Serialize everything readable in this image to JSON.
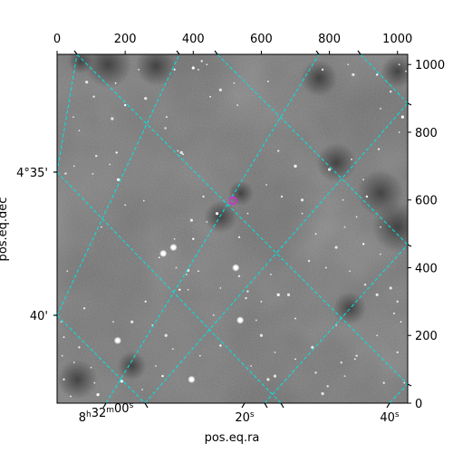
{
  "chart_data": {
    "type": "scatter",
    "image_kind": "grayscale astronomical image with WCS coordinate grid overlay",
    "xlabel": "pos.eq.ra",
    "ylabel": "pos.eq.dec",
    "pixel_axes": {
      "x_ticks": [
        "0",
        "200",
        "400",
        "600",
        "800",
        "1000"
      ],
      "y_ticks": [
        "0",
        "200",
        "400",
        "600",
        "800",
        "1000"
      ],
      "xlim": [
        0,
        1030
      ],
      "ylim": [
        0,
        1030
      ]
    },
    "world_axes": {
      "ra_ticks": [
        "8h32m00s",
        "20s",
        "40s"
      ],
      "dec_ticks": [
        "4°35'",
        "40'"
      ]
    },
    "grid": true,
    "grid_color": "#00e5e5",
    "marker": {
      "shape": "circle",
      "color": "#cc33cc",
      "x": 517,
      "y": 598
    },
    "stars": [
      [
        400,
        990
      ],
      [
        415,
        985
      ],
      [
        440,
        1000
      ],
      [
        425,
        1010
      ],
      [
        172,
        945
      ],
      [
        87,
        948
      ],
      [
        108,
        905
      ],
      [
        48,
        845
      ],
      [
        322,
        845
      ],
      [
        318,
        812
      ],
      [
        162,
        840
      ],
      [
        65,
        805
      ],
      [
        175,
        740
      ],
      [
        155,
        705
      ],
      [
        355,
        745
      ],
      [
        365,
        740
      ],
      [
        370,
        735
      ],
      [
        50,
        700
      ],
      [
        25,
        678
      ],
      [
        105,
        677
      ],
      [
        180,
        660
      ],
      [
        115,
        730
      ],
      [
        130,
        520
      ],
      [
        345,
        485
      ],
      [
        400,
        485
      ],
      [
        395,
        540
      ],
      [
        440,
        535
      ],
      [
        535,
        490
      ],
      [
        300,
        430
      ],
      [
        350,
        400
      ],
      [
        385,
        392
      ],
      [
        380,
        380
      ],
      [
        415,
        390
      ],
      [
        535,
        375
      ],
      [
        628,
        380
      ],
      [
        680,
        320
      ],
      [
        360,
        335
      ],
      [
        385,
        335
      ],
      [
        480,
        340
      ],
      [
        560,
        330
      ],
      [
        650,
        320
      ],
      [
        30,
        390
      ],
      [
        80,
        280
      ],
      [
        165,
        240
      ],
      [
        280,
        230
      ],
      [
        320,
        200
      ],
      [
        585,
        245
      ],
      [
        340,
        160
      ],
      [
        310,
        80
      ],
      [
        395,
        75
      ],
      [
        640,
        80
      ],
      [
        835,
        120
      ],
      [
        875,
        130
      ],
      [
        845,
        80
      ],
      [
        795,
        50
      ],
      [
        780,
        28
      ],
      [
        20,
        195
      ],
      [
        65,
        165
      ],
      [
        50,
        120
      ],
      [
        100,
        105
      ],
      [
        190,
        65
      ],
      [
        12,
        240
      ],
      [
        15,
        140
      ],
      [
        555,
        310
      ],
      [
        600,
        300
      ],
      [
        750,
        165
      ],
      [
        880,
        140
      ],
      [
        940,
        200
      ],
      [
        990,
        265
      ],
      [
        1000,
        300
      ],
      [
        980,
        340
      ],
      [
        950,
        440
      ],
      [
        900,
        470
      ],
      [
        950,
        520
      ],
      [
        840,
        600
      ],
      [
        800,
        690
      ],
      [
        865,
        720
      ],
      [
        950,
        870
      ],
      [
        945,
        750
      ],
      [
        1005,
        800
      ],
      [
        1015,
        845
      ],
      [
        980,
        920
      ],
      [
        1025,
        980
      ],
      [
        1005,
        1000
      ],
      [
        940,
        970
      ],
      [
        870,
        970
      ],
      [
        855,
        1000
      ],
      [
        780,
        985
      ],
      [
        620,
        950
      ],
      [
        520,
        945
      ],
      [
        480,
        925
      ],
      [
        530,
        880
      ],
      [
        450,
        905
      ],
      [
        345,
        985
      ],
      [
        240,
        985
      ],
      [
        260,
        900
      ],
      [
        200,
        880
      ],
      [
        200,
        585
      ],
      [
        255,
        598
      ],
      [
        650,
        745
      ],
      [
        700,
        700
      ],
      [
        615,
        645
      ],
      [
        660,
        610
      ],
      [
        720,
        560
      ],
      [
        760,
        500
      ],
      [
        820,
        460
      ],
      [
        845,
        520
      ],
      [
        880,
        550
      ],
      [
        910,
        610
      ],
      [
        900,
        660
      ],
      [
        720,
        600
      ],
      [
        740,
        420
      ],
      [
        790,
        400
      ],
      [
        860,
        390
      ],
      [
        905,
        350
      ],
      [
        940,
        320
      ],
      [
        1010,
        240
      ],
      [
        1000,
        150
      ],
      [
        1020,
        60
      ],
      [
        110,
        60
      ],
      [
        120,
        25
      ],
      [
        250,
        40
      ],
      [
        290,
        110
      ],
      [
        20,
        70
      ],
      [
        40,
        20
      ],
      [
        220,
        240
      ],
      [
        260,
        300
      ],
      [
        640,
        150
      ],
      [
        700,
        130
      ],
      [
        760,
        90
      ],
      [
        620,
        70
      ],
      [
        570,
        110
      ],
      [
        480,
        170
      ],
      [
        420,
        140
      ],
      [
        460,
        260
      ],
      [
        600,
        200
      ],
      [
        700,
        250
      ],
      [
        820,
        230
      ],
      [
        960,
        60
      ],
      [
        560,
        560
      ],
      [
        470,
        560
      ],
      [
        430,
        610
      ]
    ],
    "bright_stars": [
      [
        395,
        70
      ],
      [
        538,
        245
      ],
      [
        178,
        185
      ],
      [
        312,
        442
      ],
      [
        525,
        400
      ],
      [
        342,
        460
      ]
    ],
    "dark_blobs": [
      [
        1000,
        520,
        28
      ],
      [
        950,
        620,
        26
      ],
      [
        820,
        710,
        22
      ],
      [
        150,
        1000,
        26
      ],
      [
        290,
        995,
        22
      ],
      [
        770,
        960,
        20
      ],
      [
        1000,
        980,
        18
      ],
      [
        60,
        70,
        22
      ],
      [
        220,
        110,
        16
      ],
      [
        480,
        550,
        18
      ],
      [
        540,
        620,
        14
      ],
      [
        860,
        280,
        18
      ],
      [
        70,
        1010,
        14
      ]
    ]
  }
}
